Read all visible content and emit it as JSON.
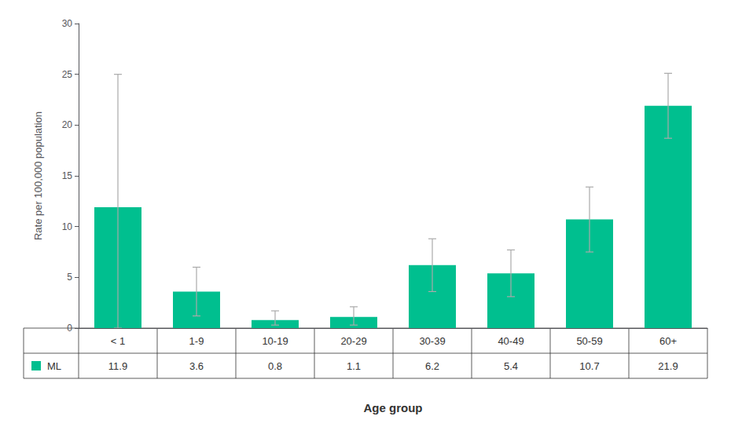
{
  "chart_data": {
    "type": "bar",
    "categories": [
      "< 1",
      "1-9",
      "10-19",
      "20-29",
      "30-39",
      "40-49",
      "50-59",
      "60+"
    ],
    "series": [
      {
        "name": "ML",
        "color": "#00BF8F",
        "values": [
          11.9,
          3.6,
          0.8,
          1.1,
          6.2,
          5.4,
          10.7,
          21.9
        ]
      }
    ],
    "errors": {
      "lower": [
        11.9,
        2.4,
        0.5,
        0.8,
        2.6,
        2.3,
        3.2,
        3.2
      ],
      "upper": [
        13.1,
        2.4,
        0.9,
        1.0,
        2.6,
        2.3,
        3.2,
        3.2
      ],
      "color": "#aaaaaa"
    },
    "xlabel": "Age group",
    "ylabel": "Rate per 100,000 population",
    "ylim": [
      0,
      30
    ],
    "yticks": [
      0,
      5,
      10,
      15,
      20,
      25,
      30
    ],
    "grid": false,
    "tick_labels": "y"
  }
}
